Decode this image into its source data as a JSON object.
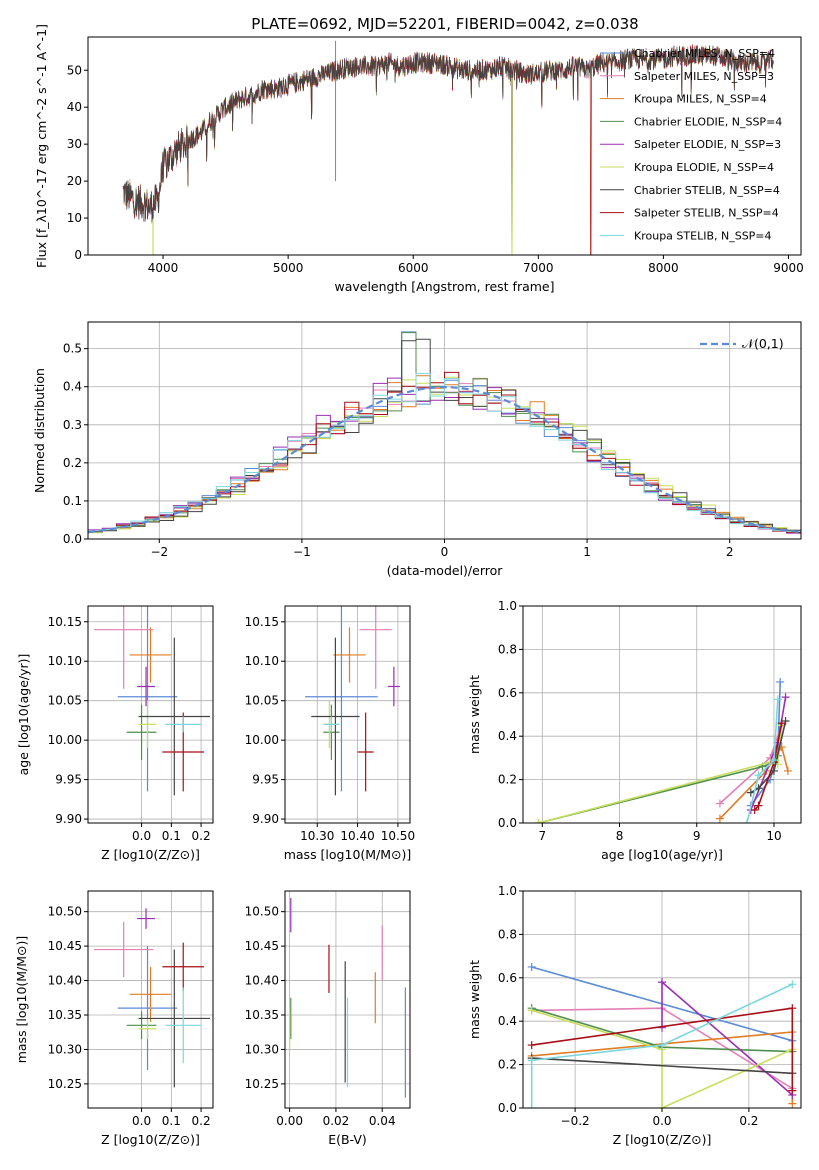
{
  "figure": {
    "title": "PLATE=0692, MJD=52201, FIBERID=0042, z=0.038",
    "colors": {
      "Chabrier MILES": "#5b8bd6",
      "Salpeter MILES": "#e57fb6",
      "Kroupa MILES": "#e07c24",
      "Chabrier ELODIE": "#4f8f4f",
      "Salpeter ELODIE": "#9a2fb4",
      "Kroupa ELODIE": "#c7df5a",
      "Chabrier STELIB": "#444444",
      "Salpeter STELIB": "#a80f16",
      "Kroupa STELIB": "#7bd7dd"
    }
  },
  "chart_data": [
    {
      "id": "spectrum",
      "type": "line",
      "title": "PLATE=0692, MJD=52201, FIBERID=0042, z=0.038",
      "xlabel": "wavelength [Angstrom, rest frame]",
      "ylabel": "Flux [f_λ10^-17 erg cm^-2 s^-1 A^-1]",
      "xlim": [
        3400,
        9100
      ],
      "ylim": [
        0,
        59
      ],
      "xticks": [
        4000,
        5000,
        6000,
        7000,
        8000,
        9000
      ],
      "yticks": [
        0,
        10,
        20,
        30,
        40,
        50
      ],
      "grid": false,
      "legend": "top-right",
      "continuum": {
        "x": [
          3680,
          3760,
          3840,
          3900,
          3960,
          4000,
          4100,
          4200,
          4300,
          4400,
          4500,
          4600,
          4700,
          4800,
          4900,
          5000,
          5100,
          5200,
          5300,
          5400,
          5500,
          5600,
          5700,
          5800,
          5900,
          6000,
          6100,
          6200,
          6300,
          6400,
          6500,
          6600,
          6700,
          6800,
          6900,
          7000,
          7100,
          7200,
          7300,
          7400,
          7500,
          7600,
          7700,
          7800,
          7900,
          8000,
          8100,
          8200,
          8300,
          8400,
          8500,
          8600,
          8700,
          8800,
          8880
        ],
        "y": [
          17,
          15,
          14,
          13,
          15,
          24,
          28,
          31,
          33,
          37,
          40,
          42,
          43,
          45,
          45,
          46,
          47,
          48,
          49,
          50,
          51,
          51,
          51,
          52,
          51,
          52,
          52,
          52,
          51,
          50,
          50,
          50,
          51,
          50,
          49,
          49,
          50,
          50,
          51,
          50,
          52,
          52,
          53,
          53,
          53,
          53,
          54,
          54,
          54,
          54,
          53,
          52,
          52,
          52,
          53
        ]
      },
      "series": [
        {
          "name": "Chabrier MILES, N_SSP=4",
          "dropouts": []
        },
        {
          "name": "Salpeter MILES, N_SSP=3",
          "dropouts": []
        },
        {
          "name": "Kroupa MILES, N_SSP=4",
          "dropouts": [
            7420
          ]
        },
        {
          "name": "Chabrier ELODIE, N_SSP=4",
          "dropouts": [
            6790
          ]
        },
        {
          "name": "Salpeter ELODIE, N_SSP=3",
          "dropouts": [
            6790
          ]
        },
        {
          "name": "Kroupa ELODIE, N_SSP=4",
          "dropouts": [
            3920,
            6790
          ]
        },
        {
          "name": "Chabrier STELIB, N_SSP=4",
          "dropouts": []
        },
        {
          "name": "Salpeter STELIB, N_SSP=4",
          "dropouts": [
            7420
          ]
        },
        {
          "name": "Kroupa STELIB, N_SSP=4",
          "dropouts": []
        }
      ]
    },
    {
      "id": "residuals",
      "type": "bar",
      "xlabel": "(data-model)/error",
      "ylabel": "Normed distribution",
      "xlim": [
        -2.5,
        2.5
      ],
      "ylim": [
        0,
        0.57
      ],
      "xticks": [
        -2,
        -1,
        0,
        1,
        2
      ],
      "yticks": [
        0.0,
        0.1,
        0.2,
        0.3,
        0.4,
        0.5
      ],
      "grid": true,
      "legend": "top-right",
      "reference_curve": {
        "name": "𝒩(0,1)",
        "mean": 0,
        "sigma": 1,
        "style": "dashed"
      },
      "bin_width": 0.1,
      "series_count": 9
    },
    {
      "id": "age_vs_Z",
      "type": "scatter",
      "xlabel": "Z [log10(Z/Z⊙)]",
      "ylabel": "age [log10(age/yr)]",
      "xlim": [
        -0.18,
        0.24
      ],
      "ylim": [
        9.895,
        10.17
      ],
      "xticks": [
        0.0,
        0.1,
        0.2
      ],
      "yticks": [
        9.9,
        9.95,
        10.0,
        10.05,
        10.1,
        10.15
      ],
      "grid": true,
      "points": [
        {
          "series": "Chabrier MILES",
          "x": 0.02,
          "xerr": 0.1,
          "y": 10.055,
          "yerr": 0.12
        },
        {
          "series": "Salpeter MILES",
          "x": -0.06,
          "xerr": 0.1,
          "y": 10.14,
          "yerr": 0.075
        },
        {
          "series": "Kroupa MILES",
          "x": 0.03,
          "xerr": 0.07,
          "y": 10.108,
          "yerr": 0.035
        },
        {
          "series": "Chabrier ELODIE",
          "x": 0.0,
          "xerr": 0.05,
          "y": 10.01,
          "yerr": 0.035
        },
        {
          "series": "Salpeter ELODIE",
          "x": 0.015,
          "xerr": 0.03,
          "y": 10.068,
          "yerr": 0.025
        },
        {
          "series": "Kroupa ELODIE",
          "x": 0.02,
          "xerr": 0.03,
          "y": 10.02,
          "yerr": 0.03
        },
        {
          "series": "Chabrier STELIB",
          "x": 0.11,
          "xerr": 0.12,
          "y": 10.03,
          "yerr": 0.1
        },
        {
          "series": "Salpeter STELIB",
          "x": 0.14,
          "xerr": 0.07,
          "y": 9.985,
          "yerr": 0.05
        },
        {
          "series": "Kroupa STELIB",
          "x": 0.14,
          "xerr": 0.06,
          "y": 10.02,
          "yerr": 0.01
        }
      ]
    },
    {
      "id": "age_vs_mass",
      "type": "scatter",
      "xlabel": "mass [log10(M/M⊙)]",
      "ylabel": "",
      "xlim": [
        10.22,
        10.53
      ],
      "ylim": [
        9.895,
        10.17
      ],
      "xticks": [
        10.3,
        10.4,
        10.5
      ],
      "yticks": [
        9.9,
        9.95,
        10.0,
        10.05,
        10.1,
        10.15
      ],
      "grid": true,
      "points": [
        {
          "series": "Chabrier MILES",
          "x": 10.36,
          "xerr": 0.09,
          "y": 10.055,
          "yerr": 0.12
        },
        {
          "series": "Salpeter MILES",
          "x": 10.445,
          "xerr": 0.04,
          "y": 10.14,
          "yerr": 0.075
        },
        {
          "series": "Kroupa MILES",
          "x": 10.38,
          "xerr": 0.04,
          "y": 10.108,
          "yerr": 0.035
        },
        {
          "series": "Chabrier ELODIE",
          "x": 10.335,
          "xerr": 0.02,
          "y": 10.01,
          "yerr": 0.035
        },
        {
          "series": "Salpeter ELODIE",
          "x": 10.49,
          "xerr": 0.015,
          "y": 10.068,
          "yerr": 0.025
        },
        {
          "series": "Kroupa ELODIE",
          "x": 10.33,
          "xerr": 0.015,
          "y": 10.02,
          "yerr": 0.03
        },
        {
          "series": "Chabrier STELIB",
          "x": 10.345,
          "xerr": 0.06,
          "y": 10.03,
          "yerr": 0.1
        },
        {
          "series": "Salpeter STELIB",
          "x": 10.42,
          "xerr": 0.02,
          "y": 9.985,
          "yerr": 0.05
        },
        {
          "series": "Kroupa STELIB",
          "x": 10.335,
          "xerr": 0.02,
          "y": 10.02,
          "yerr": 0.01
        }
      ]
    },
    {
      "id": "massweight_vs_age",
      "type": "line",
      "xlabel": "age [log10(age/yr)]",
      "ylabel": "mass weight",
      "xlim": [
        6.75,
        10.35
      ],
      "ylim": [
        0,
        1
      ],
      "xticks": [
        7,
        8,
        9,
        10
      ],
      "yticks": [
        0.0,
        0.2,
        0.4,
        0.6,
        0.8,
        1.0
      ],
      "grid": true,
      "series": [
        {
          "name": "Chabrier MILES",
          "x": [
            9.7,
            9.95,
            10.05,
            10.08
          ],
          "y": [
            0.08,
            0.2,
            0.31,
            0.65
          ]
        },
        {
          "name": "Salpeter MILES",
          "x": [
            9.3,
            9.95,
            10.1
          ],
          "y": [
            0.09,
            0.3,
            0.45
          ]
        },
        {
          "name": "Kroupa MILES",
          "x": [
            9.3,
            9.9,
            10.1,
            10.18
          ],
          "y": [
            0.02,
            0.24,
            0.35,
            0.24
          ]
        },
        {
          "name": "Chabrier ELODIE",
          "x": [
            6.95,
            9.85,
            10.0,
            10.1
          ],
          "y": [
            0.0,
            0.26,
            0.28,
            0.46
          ]
        },
        {
          "name": "Salpeter ELODIE",
          "x": [
            9.7,
            10.05,
            10.15
          ],
          "y": [
            0.06,
            0.37,
            0.58
          ]
        },
        {
          "name": "Kroupa ELODIE",
          "x": [
            6.95,
            9.95,
            10.05,
            10.1
          ],
          "y": [
            0.0,
            0.28,
            0.27,
            0.45
          ]
        },
        {
          "name": "Chabrier STELIB",
          "x": [
            9.7,
            9.8,
            10.0,
            10.15
          ],
          "y": [
            0.14,
            0.16,
            0.24,
            0.47
          ]
        },
        {
          "name": "Salpeter STELIB",
          "x": [
            9.75,
            9.8,
            10.0,
            10.1
          ],
          "y": [
            0.06,
            0.08,
            0.28,
            0.46
          ]
        },
        {
          "name": "Kroupa STELIB",
          "x": [
            9.65,
            9.8,
            10.0,
            10.05
          ],
          "y": [
            0.0,
            0.22,
            0.29,
            0.57
          ]
        }
      ]
    },
    {
      "id": "mass_vs_Z",
      "type": "scatter",
      "xlabel": "Z [log10(Z/Z⊙)]",
      "ylabel": "mass [log10(M/M⊙)]",
      "xlim": [
        -0.18,
        0.24
      ],
      "ylim": [
        10.215,
        10.53
      ],
      "xticks": [
        0.0,
        0.1,
        0.2
      ],
      "yticks": [
        10.25,
        10.3,
        10.35,
        10.4,
        10.45,
        10.5
      ],
      "grid": true,
      "points": [
        {
          "series": "Chabrier MILES",
          "x": 0.02,
          "xerr": 0.1,
          "y": 10.36,
          "yerr": 0.09
        },
        {
          "series": "Salpeter MILES",
          "x": -0.06,
          "xerr": 0.1,
          "y": 10.445,
          "yerr": 0.04
        },
        {
          "series": "Kroupa MILES",
          "x": 0.03,
          "xerr": 0.07,
          "y": 10.38,
          "yerr": 0.04
        },
        {
          "series": "Chabrier ELODIE",
          "x": 0.0,
          "xerr": 0.05,
          "y": 10.335,
          "yerr": 0.02
        },
        {
          "series": "Salpeter ELODIE",
          "x": 0.015,
          "xerr": 0.03,
          "y": 10.49,
          "yerr": 0.015
        },
        {
          "series": "Kroupa ELODIE",
          "x": 0.02,
          "xerr": 0.03,
          "y": 10.33,
          "yerr": 0.015
        },
        {
          "series": "Chabrier STELIB",
          "x": 0.11,
          "xerr": 0.12,
          "y": 10.345,
          "yerr": 0.1
        },
        {
          "series": "Salpeter STELIB",
          "x": 0.14,
          "xerr": 0.07,
          "y": 10.42,
          "yerr": 0.035
        },
        {
          "series": "Kroupa STELIB",
          "x": 0.14,
          "xerr": 0.06,
          "y": 10.335,
          "yerr": 0.055
        }
      ]
    },
    {
      "id": "mass_vs_EBV",
      "type": "scatter",
      "xlabel": "E(B-V)",
      "ylabel": "",
      "xlim": [
        -0.002,
        0.052
      ],
      "ylim": [
        10.215,
        10.53
      ],
      "xticks": [
        0.0,
        0.02,
        0.04
      ],
      "yticks": [
        10.25,
        10.3,
        10.35,
        10.4,
        10.45,
        10.5
      ],
      "grid": true,
      "points": [
        {
          "series": "Chabrier MILES",
          "x": 0.05,
          "y": 10.31,
          "yerr": 0.08
        },
        {
          "series": "Salpeter MILES",
          "x": 0.04,
          "y": 10.44,
          "yerr": 0.04
        },
        {
          "series": "Kroupa MILES",
          "x": 0.037,
          "y": 10.375,
          "yerr": 0.037
        },
        {
          "series": "Chabrier ELODIE",
          "x": 0.0005,
          "y": 10.345,
          "yerr": 0.03
        },
        {
          "series": "Salpeter ELODIE",
          "x": 0.0005,
          "y": 10.495,
          "yerr": 0.025
        },
        {
          "series": "Kroupa ELODIE",
          "x": 0.0,
          "y": 10.33,
          "yerr": 0.03
        },
        {
          "series": "Chabrier STELIB",
          "x": 0.024,
          "y": 10.34,
          "yerr": 0.088
        },
        {
          "series": "Salpeter STELIB",
          "x": 0.017,
          "y": 10.417,
          "yerr": 0.035
        },
        {
          "series": "Kroupa STELIB",
          "x": 0.025,
          "y": 10.31,
          "yerr": 0.065
        }
      ]
    },
    {
      "id": "massweight_vs_Z",
      "type": "line",
      "xlabel": "Z [log10(Z/Z⊙)]",
      "ylabel": "mass weight",
      "xlim": [
        -0.32,
        0.32
      ],
      "ylim": [
        0,
        1
      ],
      "xticks": [
        -0.2,
        0.0,
        0.2
      ],
      "yticks": [
        0.0,
        0.2,
        0.4,
        0.6,
        0.8,
        1.0
      ],
      "grid": true,
      "series": [
        {
          "name": "Chabrier MILES",
          "x": [
            -0.3,
            0.3
          ],
          "y": [
            0.65,
            0.31
          ]
        },
        {
          "name": "Salpeter MILES",
          "x": [
            -0.3,
            0.0,
            0.3
          ],
          "y": [
            0.45,
            0.46,
            0.09
          ]
        },
        {
          "name": "Kroupa MILES",
          "x": [
            -0.3,
            0.3,
            0.3
          ],
          "y": [
            0.24,
            0.35,
            0.02
          ]
        },
        {
          "name": "Chabrier ELODIE",
          "x": [
            -0.3,
            0.0,
            0.3
          ],
          "y": [
            0.46,
            0.28,
            0.26
          ]
        },
        {
          "name": "Salpeter ELODIE",
          "x": [
            0.0,
            0.0,
            0.3
          ],
          "y": [
            0.37,
            0.58,
            0.06
          ]
        },
        {
          "name": "Kroupa ELODIE",
          "x": [
            -0.3,
            0.0,
            0.0,
            0.3
          ],
          "y": [
            0.45,
            0.27,
            0.0,
            0.27
          ]
        },
        {
          "name": "Chabrier STELIB",
          "x": [
            -0.3,
            0.3
          ],
          "y": [
            0.23,
            0.16
          ]
        },
        {
          "name": "Salpeter STELIB",
          "x": [
            -0.3,
            0.3,
            0.3
          ],
          "y": [
            0.29,
            0.46,
            0.08
          ]
        },
        {
          "name": "Kroupa STELIB",
          "x": [
            -0.3,
            -0.3,
            0.0,
            0.3
          ],
          "y": [
            0.0,
            0.22,
            0.29,
            0.57
          ]
        }
      ]
    }
  ]
}
